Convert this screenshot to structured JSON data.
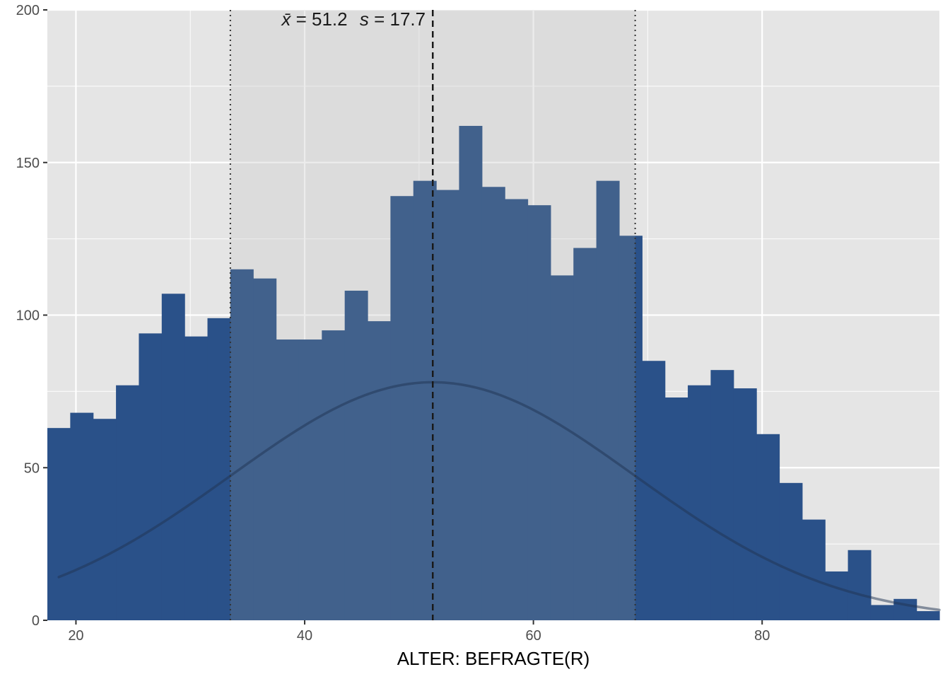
{
  "chart_data": {
    "type": "bar",
    "xlabel": "ALTER: BEFRAGTE(R)",
    "ylabel": "",
    "title": "",
    "xlim": [
      17.5,
      95.5
    ],
    "ylim": [
      0,
      200
    ],
    "x_ticks": [
      20,
      40,
      60,
      80
    ],
    "y_ticks": [
      0,
      50,
      100,
      150,
      200
    ],
    "bin_width": 2,
    "bins": [
      {
        "x": 18.5,
        "count": 63
      },
      {
        "x": 20.5,
        "count": 68
      },
      {
        "x": 22.5,
        "count": 66
      },
      {
        "x": 24.5,
        "count": 77
      },
      {
        "x": 26.5,
        "count": 94
      },
      {
        "x": 28.5,
        "count": 107
      },
      {
        "x": 30.5,
        "count": 93
      },
      {
        "x": 32.5,
        "count": 99
      },
      {
        "x": 34.5,
        "count": 115
      },
      {
        "x": 36.5,
        "count": 112
      },
      {
        "x": 38.5,
        "count": 92
      },
      {
        "x": 40.5,
        "count": 92
      },
      {
        "x": 42.5,
        "count": 95
      },
      {
        "x": 44.5,
        "count": 108
      },
      {
        "x": 46.5,
        "count": 98
      },
      {
        "x": 48.5,
        "count": 139
      },
      {
        "x": 50.5,
        "count": 144
      },
      {
        "x": 52.5,
        "count": 141
      },
      {
        "x": 54.5,
        "count": 162
      },
      {
        "x": 56.5,
        "count": 142
      },
      {
        "x": 58.5,
        "count": 138
      },
      {
        "x": 60.5,
        "count": 136
      },
      {
        "x": 62.5,
        "count": 113
      },
      {
        "x": 64.5,
        "count": 122
      },
      {
        "x": 66.5,
        "count": 144
      },
      {
        "x": 68.5,
        "count": 126
      },
      {
        "x": 70.5,
        "count": 85
      },
      {
        "x": 72.5,
        "count": 73
      },
      {
        "x": 74.5,
        "count": 77
      },
      {
        "x": 76.5,
        "count": 82
      },
      {
        "x": 78.5,
        "count": 76
      },
      {
        "x": 80.5,
        "count": 61
      },
      {
        "x": 82.5,
        "count": 45
      },
      {
        "x": 84.5,
        "count": 33
      },
      {
        "x": 86.5,
        "count": 16
      },
      {
        "x": 88.5,
        "count": 23
      },
      {
        "x": 90.5,
        "count": 5
      },
      {
        "x": 92.5,
        "count": 7
      },
      {
        "x": 94.5,
        "count": 3
      }
    ],
    "mean": 51.2,
    "sd": 17.7,
    "normal_curve": {
      "peak": 78,
      "x_start": 18.5,
      "x_end": 95.5
    },
    "annotation": {
      "mean_label": "x̄",
      "mean_value": "= 51.2",
      "sd_label": "s",
      "sd_value": "= 17.7"
    },
    "colors": {
      "panel_bg": "#e5e5e5",
      "band_bg": "#d9d9d9",
      "bar": "#2a5189",
      "bar_in_band": "#41618c",
      "grid": "#ffffff",
      "curve": "#1f3352",
      "mean_line": "#1a1a1a"
    }
  }
}
